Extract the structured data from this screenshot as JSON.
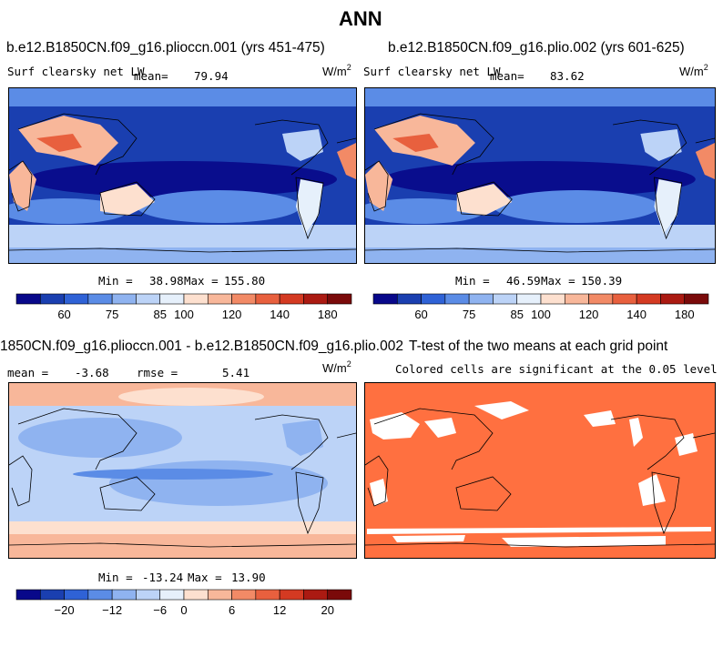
{
  "title": "ANN",
  "panels": [
    {
      "id": "p1",
      "case_title": "b.e12.B1850CN.f09_g16.pliocсn.001 (yrs 451-475)",
      "variable_label": "Surf clearsky net LW",
      "mean_label": "mean=",
      "mean_value": "79.94",
      "units_base": "W/m",
      "units_exp": "2",
      "min_label": "Min =",
      "min_value": "38.98",
      "max_label": "Max =",
      "max_value": "155.80",
      "colorbar_labels": [
        "60",
        "75",
        "85",
        "100",
        "120",
        "140",
        "180"
      ]
    },
    {
      "id": "p2",
      "case_title": "b.e12.B1850CN.f09_g16.plio.002 (yrs 601-625)",
      "variable_label": "Surf clearsky net LW",
      "mean_label": "mean=",
      "mean_value": "83.62",
      "units_base": "W/m",
      "units_exp": "2",
      "min_label": "Min =",
      "min_value": "46.59",
      "max_label": "Max =",
      "max_value": "150.39",
      "colorbar_labels": [
        "60",
        "75",
        "85",
        "100",
        "120",
        "140",
        "180"
      ]
    },
    {
      "id": "p3",
      "case_title": "1850CN.f09_g16.pliocсn.001 - b.e12.B1850CN.f09_g16.plio.002",
      "mean_label": "mean =",
      "mean_value": "-3.68",
      "rmse_label": "rmse =",
      "rmse_value": "5.41",
      "units_base": "W/m",
      "units_exp": "2",
      "min_label": "Min =",
      "min_value": "-13.24",
      "max_label": "Max =",
      "max_value": "13.90",
      "colorbar_labels": [
        "−20",
        "−12",
        "−6",
        "0",
        "6",
        "12",
        "20"
      ]
    },
    {
      "id": "p4",
      "case_title": "T-test of the two means at each grid point",
      "subtitle": "Colored cells are significant at the 0.05 level"
    }
  ],
  "chart_data": [
    {
      "type": "heatmap",
      "title": "b.e12.B1850CN.f09_g16.pliocсn.001 (yrs 451-475)",
      "variable": "Surf clearsky net LW",
      "units": "W/m2",
      "mean": 79.94,
      "min": 38.98,
      "max": 155.8,
      "colorbar_ticks": [
        60,
        75,
        85,
        100,
        120,
        140,
        180
      ]
    },
    {
      "type": "heatmap",
      "title": "b.e12.B1850CN.f09_g16.plio.002 (yrs 601-625)",
      "variable": "Surf clearsky net LW",
      "units": "W/m2",
      "mean": 83.62,
      "min": 46.59,
      "max": 150.39,
      "colorbar_ticks": [
        60,
        75,
        85,
        100,
        120,
        140,
        180
      ]
    },
    {
      "type": "heatmap",
      "title": "1850CN.f09_g16.pliocсn.001 - b.e12.B1850CN.f09_g16.plio.002",
      "units": "W/m2",
      "mean": -3.68,
      "rmse": 5.41,
      "min": -13.24,
      "max": 13.9,
      "colorbar_ticks": [
        -20,
        -12,
        -6,
        0,
        6,
        12,
        20
      ]
    },
    {
      "type": "heatmap",
      "title": "T-test of the two means at each grid point",
      "subtitle": "Colored cells are significant at the 0.05 level"
    }
  ],
  "colors": {
    "cb_fill": [
      "#08088a",
      "#1a3fb0",
      "#2f62d6",
      "#5b8ce6",
      "#8fb3f0",
      "#bcd3f7",
      "#e6f0fb",
      "#fde0cf",
      "#f8b79a",
      "#f28a66",
      "#e8603e",
      "#d43a22",
      "#ab1a12",
      "#7a0a0a"
    ],
    "ttest_fill": "#ff7040"
  }
}
